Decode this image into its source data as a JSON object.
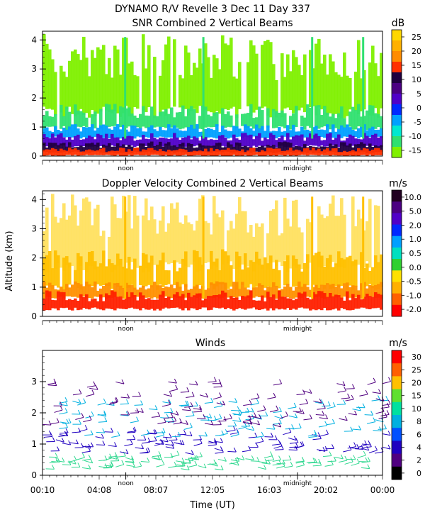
{
  "header": {
    "title_line1": "DYNAMO R/V Revelle    3 Dec 11 Day 337"
  },
  "chart_data": [
    {
      "type": "heatmap",
      "title": "SNR Combined 2 Vertical Beams",
      "xlabel": "",
      "ylabel": "",
      "ylim": [
        0,
        4.3
      ],
      "yticks": [
        "0",
        "1",
        "2",
        "3",
        "4"
      ],
      "xmarkers": [
        "noon",
        "midnight"
      ],
      "colorbar": {
        "unit": "dB",
        "labels": [
          "25",
          "20",
          "15",
          "10",
          "5",
          "0",
          "-5",
          "-10",
          "-15"
        ],
        "colors": [
          "#ffd700",
          "#ffb000",
          "#ff8c00",
          "#ff3000",
          "#200040",
          "#4b0082",
          "#5000c8",
          "#0028ff",
          "#00a0ff",
          "#00e8d0",
          "#30e070",
          "#80f000"
        ]
      },
      "layers": [
        {
          "alt_range_km": [
            0.0,
            0.3
          ],
          "value_db": 15,
          "color": "#ff3000"
        },
        {
          "alt_range_km": [
            0.1,
            0.5
          ],
          "value_db": 10,
          "color": "#200040"
        },
        {
          "alt_range_km": [
            0.3,
            0.8
          ],
          "value_db": 5,
          "color": "#5000c8"
        },
        {
          "alt_range_km": [
            0.6,
            1.1
          ],
          "value_db": -5,
          "color": "#00a0ff"
        },
        {
          "alt_range_km": [
            0.9,
            1.8
          ],
          "value_db": -10,
          "color": "#30e070"
        },
        {
          "alt_range_km": [
            1.3,
            4.2
          ],
          "value_db": -15,
          "color": "#80f000"
        }
      ]
    },
    {
      "type": "heatmap",
      "title": "Doppler Velocity Combined 2 Vertical Beams",
      "xlabel": "",
      "ylabel": "Altitude (km)",
      "ylim": [
        0,
        4.3
      ],
      "yticks": [
        "0",
        "1",
        "2",
        "3",
        "4"
      ],
      "xmarkers": [
        "noon",
        "midnight"
      ],
      "colorbar": {
        "unit": "m/s",
        "labels": [
          "10.0",
          "5.0",
          "2.0",
          "1.0",
          "0.5",
          "0.0",
          "-0.5",
          "-1.0",
          "-2.0"
        ],
        "colors": [
          "#200020",
          "#4b0082",
          "#5000c8",
          "#0028ff",
          "#00a0ff",
          "#00e0c0",
          "#30d030",
          "#ffe000",
          "#ffb000",
          "#ff6000",
          "#ff0000"
        ]
      },
      "layers": [
        {
          "alt_range_km": [
            0.2,
            0.9
          ],
          "value_ms": -1.0,
          "color": "#ff2000"
        },
        {
          "alt_range_km": [
            0.6,
            1.2
          ],
          "value_ms": -0.5,
          "color": "#ff9000"
        },
        {
          "alt_range_km": [
            0.9,
            2.3
          ],
          "value_ms": 0.0,
          "color": "#ffc000"
        },
        {
          "alt_range_km": [
            1.5,
            4.2
          ],
          "value_ms": 0.0,
          "color": "#ffe060"
        }
      ]
    },
    {
      "type": "scatter",
      "title": "Winds",
      "xlabel": "Time (UT)",
      "ylabel": "",
      "ylim": [
        0,
        4
      ],
      "xlim": [
        0,
        24
      ],
      "yticks": [
        "0",
        "1",
        "2",
        "3"
      ],
      "xticklabels": [
        "00:10",
        "04:08",
        "08:07",
        "12:05",
        "16:03",
        "20:02",
        "00:00"
      ],
      "xmarkers": [
        "noon",
        "midnight"
      ],
      "colorbar": {
        "unit": "m/s",
        "labels": [
          "30",
          "25",
          "20",
          "15",
          "10",
          "8",
          "6",
          "4",
          "2",
          "0"
        ],
        "colors": [
          "#ff0000",
          "#ff6000",
          "#ffc000",
          "#60e030",
          "#00e0a0",
          "#00b0e0",
          "#0050ff",
          "#2000c0",
          "#500080",
          "#000000"
        ]
      },
      "layers": [
        {
          "alt_range_km": [
            0.2,
            0.6
          ],
          "speed_ms": 12,
          "color": "#30d890"
        },
        {
          "alt_range_km": [
            0.7,
            1.4
          ],
          "speed_ms": 4,
          "color": "#2000c0"
        },
        {
          "alt_range_km": [
            1.2,
            2.4
          ],
          "speed_ms": 8,
          "color": "#00b0e0"
        },
        {
          "alt_range_km": [
            1.6,
            3.0
          ],
          "speed_ms": 4,
          "color": "#500080"
        }
      ]
    }
  ]
}
